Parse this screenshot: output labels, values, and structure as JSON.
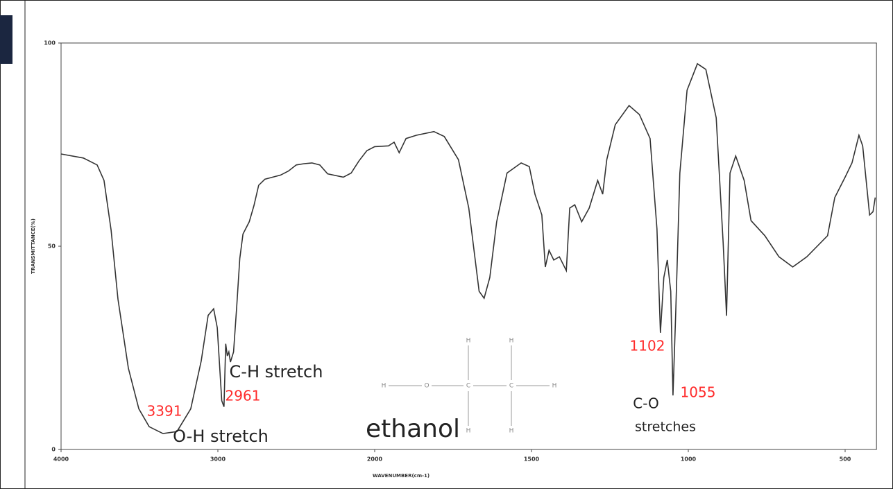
{
  "chart_data": {
    "type": "line",
    "xlabel": "WAVENUMBER(cm-1)",
    "ylabel": "TRANSMITTANCE(%)",
    "xlim": [
      4000,
      400
    ],
    "ylim": [
      0,
      100
    ],
    "xticks": [
      4000,
      3000,
      2000,
      1500,
      1000,
      500
    ],
    "yticks": [
      0,
      50,
      100
    ],
    "series": [
      {
        "color": "#333333",
        "x": [
          4000,
          3858,
          3770,
          3726,
          3681,
          3637,
          3571,
          3504,
          3438,
          3350,
          3261,
          3173,
          3106,
          3062,
          3027,
          3004,
          2975,
          2961,
          2950,
          2940,
          2930,
          2920,
          2900,
          2880,
          2860,
          2840,
          2800,
          2770,
          2740,
          2700,
          2650,
          2600,
          2550,
          2500,
          2450,
          2400,
          2350,
          2300,
          2200,
          2150,
          2100,
          2050,
          2000,
          1956,
          1938,
          1922,
          1900,
          1867,
          1811,
          1778,
          1733,
          1700,
          1667,
          1651,
          1633,
          1611,
          1578,
          1533,
          1507,
          1489,
          1467,
          1456,
          1444,
          1429,
          1411,
          1389,
          1378,
          1362,
          1340,
          1316,
          1289,
          1273,
          1260,
          1233,
          1189,
          1156,
          1122,
          1100,
          1089,
          1078,
          1067,
          1056,
          1049,
          1040,
          1027,
          1004,
          971,
          944,
          911,
          889,
          878,
          867,
          849,
          822,
          800,
          756,
          711,
          667,
          622,
          556,
          533,
          500,
          478,
          456,
          444,
          422,
          411,
          404
        ],
        "values": [
          72.7,
          71.7,
          70,
          66.2,
          54,
          37,
          20,
          10,
          5.6,
          3.9,
          4.4,
          10,
          21.8,
          33,
          34.6,
          30,
          12,
          10.5,
          26,
          23,
          24,
          21.5,
          24,
          35,
          47,
          53,
          56,
          60,
          65,
          66.5,
          67,
          67.5,
          68.5,
          70,
          70.3,
          70.5,
          70,
          67.8,
          67,
          68,
          71,
          73.5,
          74.5,
          74.7,
          75.6,
          73,
          76.5,
          77.3,
          78.2,
          77,
          71.3,
          59.4,
          38.9,
          37.2,
          42.3,
          56,
          68,
          70.5,
          69.6,
          62.8,
          57.7,
          44.9,
          49,
          46.6,
          47.4,
          44,
          59.4,
          60.2,
          56,
          59.4,
          66.2,
          62.8,
          71.3,
          79.9,
          84.6,
          82.4,
          76.5,
          54.3,
          28.7,
          42.3,
          46.6,
          38.9,
          13.3,
          33.8,
          68,
          88.4,
          94.9,
          93.5,
          81.6,
          50.9,
          32.9,
          68,
          72.2,
          66.2,
          56.3,
          52.6,
          47.4,
          44.9,
          47.4,
          52.6,
          62,
          67,
          70.5,
          77.3,
          74.7,
          57.7,
          58.5,
          62
        ]
      }
    ],
    "annotations": [
      {
        "text": "3391",
        "color": "#ff2a2a"
      },
      {
        "text": "O-H stretch",
        "color": "#222222"
      },
      {
        "text": "C-H  stretch",
        "color": "#222222"
      },
      {
        "text": "2961",
        "color": "#ff2a2a"
      },
      {
        "text": "1102",
        "color": "#ff2a2a"
      },
      {
        "text": "1055",
        "color": "#ff2a2a"
      },
      {
        "text": "C-O",
        "color": "#222222"
      },
      {
        "text": "stretches",
        "color": "#222222"
      },
      {
        "text": "ethanol",
        "color": "#222222"
      }
    ],
    "structure": {
      "atoms": [
        "H",
        "O",
        "C",
        "C",
        "H",
        "H",
        "H",
        "H",
        "H"
      ]
    }
  }
}
